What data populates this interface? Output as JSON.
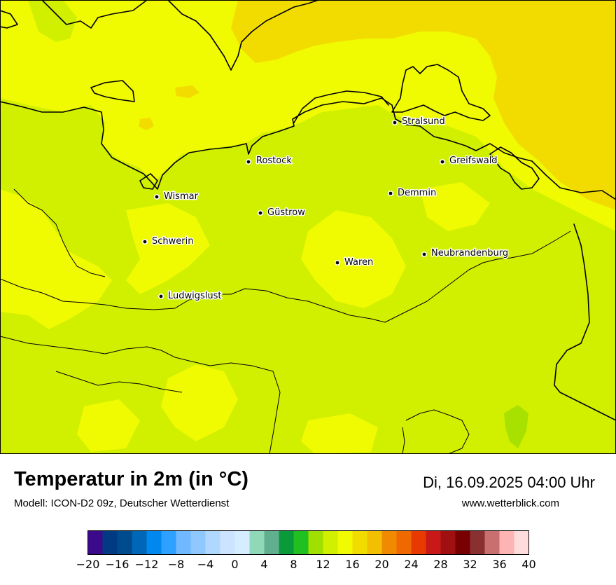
{
  "map": {
    "cities": [
      {
        "name": "Stralsund",
        "id": "stralsund"
      },
      {
        "name": "Rostock",
        "id": "rostock"
      },
      {
        "name": "Greifswald",
        "id": "greifswald"
      },
      {
        "name": "Wismar",
        "id": "wismar"
      },
      {
        "name": "Demmin",
        "id": "demmin"
      },
      {
        "name": "Güstrow",
        "id": "guestrow"
      },
      {
        "name": "Schwerin",
        "id": "schwerin"
      },
      {
        "name": "Neubrandenburg",
        "id": "neubrandenburg"
      },
      {
        "name": "Waren",
        "id": "waren"
      },
      {
        "name": "Ludwigslust",
        "id": "ludwigslust"
      }
    ],
    "field_colors": {
      "t16_18": "#f0fa00",
      "t18_20": "#f2dc00",
      "t14_16": "#d0f000",
      "t12_14": "#a8e000"
    }
  },
  "footer": {
    "title": "Temperatur in 2m (in °C)",
    "model": "Modell: ICON-D2 09z, Deutscher Wetterdienst",
    "datetime": "Di, 16.09.2025 04:00 Uhr",
    "website": "www.wetterblick.com"
  },
  "legend": {
    "min": -20,
    "max": 40,
    "step": 2,
    "tick_labels": [
      "−20",
      "−16",
      "−12",
      "−8",
      "−4",
      "0",
      "4",
      "8",
      "12",
      "16",
      "20",
      "24",
      "28",
      "32",
      "36",
      "40"
    ],
    "colors": [
      "#3a0a8a",
      "#003a82",
      "#004a8e",
      "#0066b8",
      "#0088ee",
      "#2ea0ff",
      "#70b8ff",
      "#8ec8ff",
      "#b0d8ff",
      "#cce4ff",
      "#d6ecff",
      "#8fd8b8",
      "#60b090",
      "#0a9a3a",
      "#20c020",
      "#a0e000",
      "#d0f000",
      "#f0fa00",
      "#f2dc00",
      "#f2c000",
      "#f08a00",
      "#f06800",
      "#e83a00",
      "#c81818",
      "#a01010",
      "#780000",
      "#8a3030",
      "#c87070",
      "#ffb4b4",
      "#ffdcdc"
    ]
  }
}
